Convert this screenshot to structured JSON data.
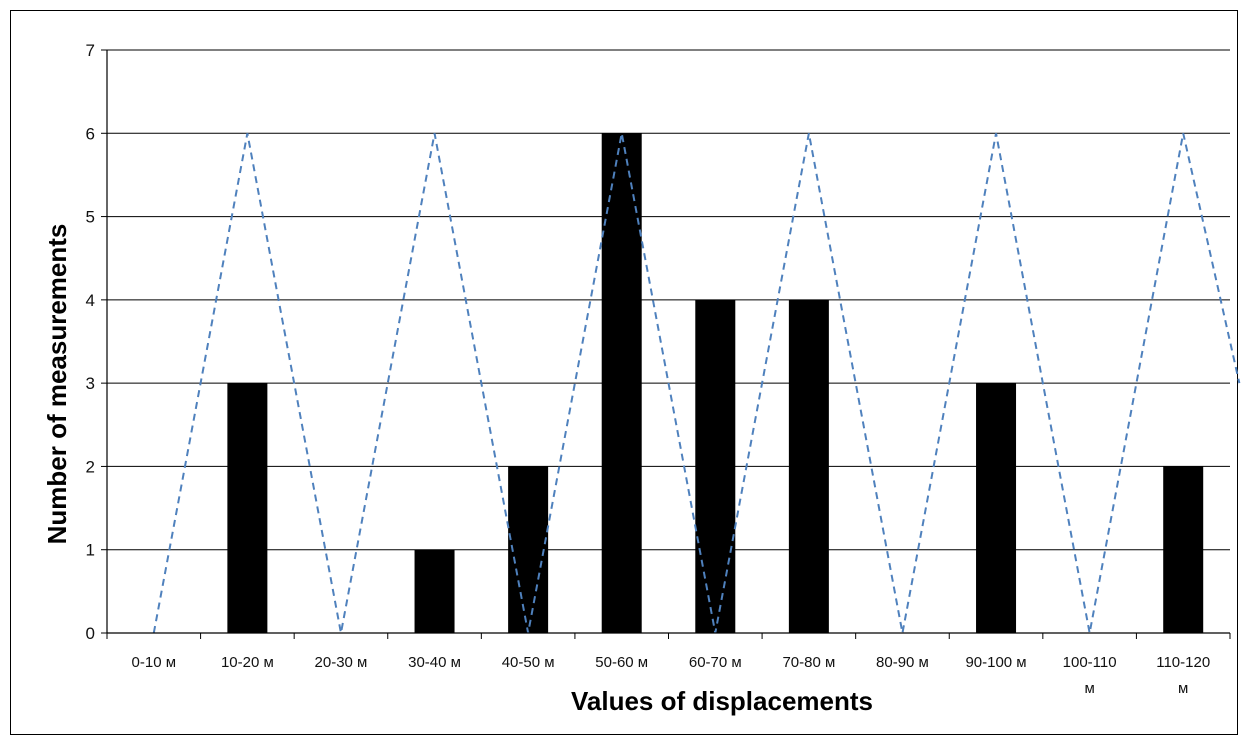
{
  "chart_data": {
    "type": "bar",
    "title": "",
    "xlabel": "Values of displacements",
    "ylabel": "Number of measurements",
    "ylim": [
      0,
      7
    ],
    "yticks": [
      "0",
      "1",
      "2",
      "3",
      "4",
      "5",
      "6",
      "7"
    ],
    "grid": true,
    "categories": [
      [
        "0-10 м"
      ],
      [
        "10-20 м"
      ],
      [
        "20-30 м"
      ],
      [
        "30-40 м"
      ],
      [
        "40-50 м"
      ],
      [
        "50-60 м"
      ],
      [
        "60-70 м"
      ],
      [
        "70-80 м"
      ],
      [
        "80-90 м"
      ],
      [
        "90-100 м"
      ],
      [
        "100-110",
        "м"
      ],
      [
        "110-120",
        "м"
      ]
    ],
    "series": [
      {
        "type": "bar",
        "color": "#000000",
        "values": [
          0,
          3,
          0,
          1,
          2,
          6,
          4,
          4,
          0,
          3,
          0,
          2
        ]
      }
    ],
    "overlay_line": {
      "type": "line",
      "style": "dashed",
      "color": "#4f81bd",
      "points": [
        [
          0,
          0
        ],
        [
          1,
          6
        ],
        [
          2,
          0
        ],
        [
          3,
          6
        ],
        [
          4,
          0
        ],
        [
          5,
          6
        ],
        [
          6,
          0
        ],
        [
          7,
          6
        ],
        [
          8,
          0
        ],
        [
          9,
          6
        ],
        [
          10,
          0
        ],
        [
          11,
          6
        ],
        [
          11.6,
          3
        ]
      ]
    }
  }
}
